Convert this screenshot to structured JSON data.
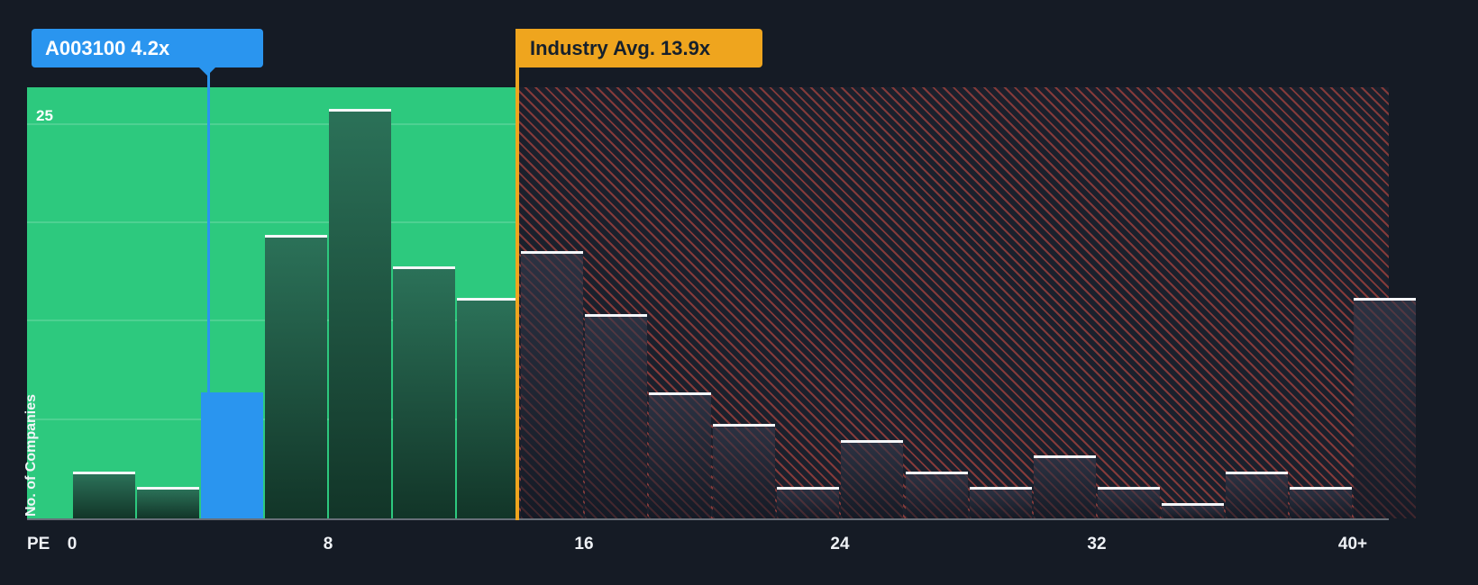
{
  "company_tooltip": {
    "label": "A003100 4.2x"
  },
  "industry_marker": {
    "label": "Industry Avg. 13.9x",
    "value": 13.9
  },
  "axes": {
    "y_title": "No. of Companies",
    "y_tick": "25",
    "x_title": "PE",
    "x_ticks": [
      {
        "label": "0",
        "value": 0
      },
      {
        "label": "8",
        "value": 8
      },
      {
        "label": "16",
        "value": 16
      },
      {
        "label": "24",
        "value": 24
      },
      {
        "label": "32",
        "value": 32
      },
      {
        "label": "40+",
        "value": 40
      }
    ]
  },
  "colors": {
    "background": "#151b25",
    "below_average_zone": "#2dc97e",
    "company_highlight": "#2a95ef",
    "industry_marker": "#efa51e",
    "above_average_hatch": "#eb5548",
    "bar_top_edge": "#f5f7fa"
  },
  "chart_data": {
    "type": "bar",
    "xlabel": "PE",
    "ylabel": "No. of Companies",
    "x_bucket_size": 2,
    "x_range": [
      0,
      42
    ],
    "ylim": [
      0,
      27.5
    ],
    "y_gridlines": [
      6.25,
      12.5,
      18.75,
      25
    ],
    "industry_avg": 13.9,
    "company": {
      "name": "A003100",
      "pe": 4.2,
      "bucket_index": 2
    },
    "buckets": [
      {
        "x0": 0,
        "x1": 2,
        "count": 3
      },
      {
        "x0": 2,
        "x1": 4,
        "count": 2
      },
      {
        "x0": 4,
        "x1": 6,
        "count": 8,
        "highlight": true
      },
      {
        "x0": 6,
        "x1": 8,
        "count": 18
      },
      {
        "x0": 8,
        "x1": 10,
        "count": 26
      },
      {
        "x0": 10,
        "x1": 12,
        "count": 16
      },
      {
        "x0": 12,
        "x1": 14,
        "count": 14
      },
      {
        "x0": 14,
        "x1": 16,
        "count": 17
      },
      {
        "x0": 16,
        "x1": 18,
        "count": 13
      },
      {
        "x0": 18,
        "x1": 20,
        "count": 8
      },
      {
        "x0": 20,
        "x1": 22,
        "count": 6
      },
      {
        "x0": 22,
        "x1": 24,
        "count": 2
      },
      {
        "x0": 24,
        "x1": 26,
        "count": 5
      },
      {
        "x0": 26,
        "x1": 28,
        "count": 3
      },
      {
        "x0": 28,
        "x1": 30,
        "count": 2
      },
      {
        "x0": 30,
        "x1": 32,
        "count": 4
      },
      {
        "x0": 32,
        "x1": 34,
        "count": 2
      },
      {
        "x0": 34,
        "x1": 36,
        "count": 1
      },
      {
        "x0": 36,
        "x1": 38,
        "count": 3
      },
      {
        "x0": 38,
        "x1": 40,
        "count": 2
      },
      {
        "x0": 40,
        "x1": 42,
        "count": 14,
        "label": "40+"
      }
    ]
  }
}
